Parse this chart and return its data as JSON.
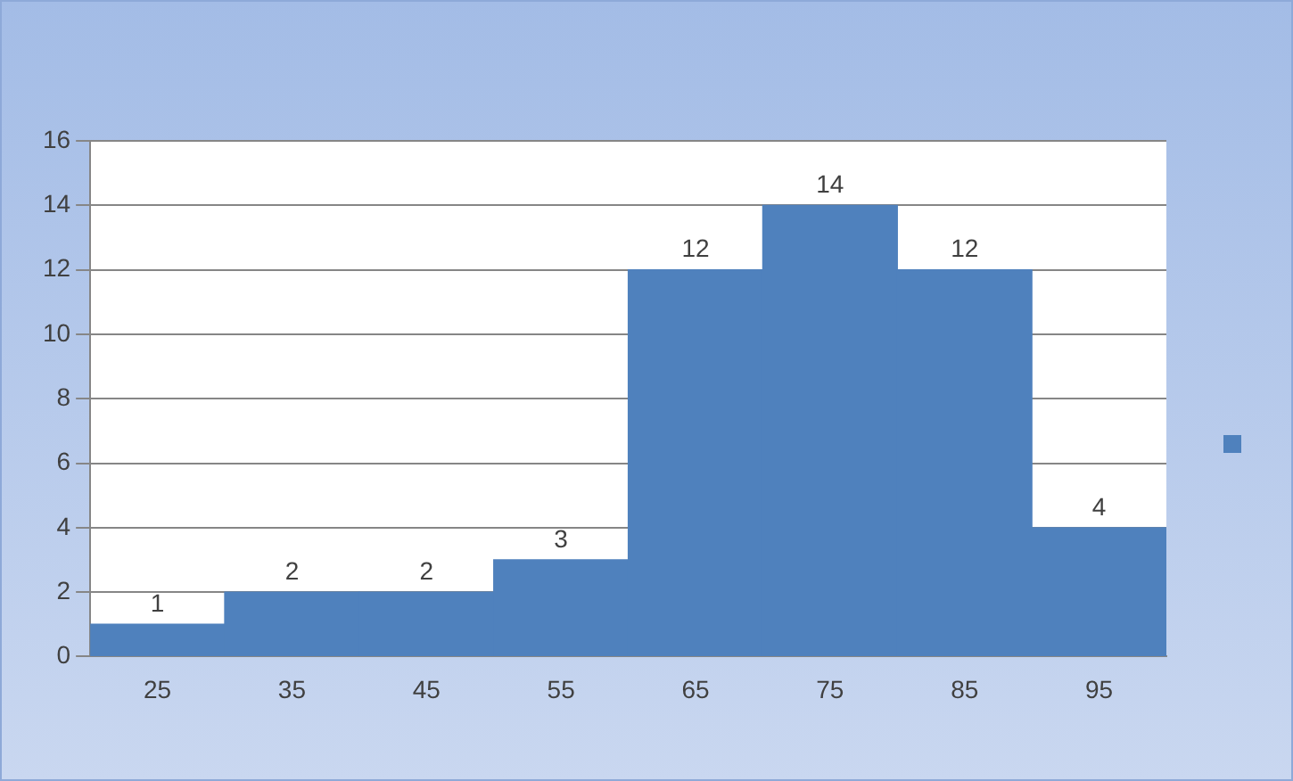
{
  "chart_data": {
    "type": "bar",
    "categories": [
      "25",
      "35",
      "45",
      "55",
      "65",
      "75",
      "85",
      "95"
    ],
    "values": [
      1,
      2,
      2,
      3,
      12,
      14,
      12,
      4
    ],
    "color": "#4f81bd",
    "ylim": [
      0,
      16
    ],
    "yticks": [
      0,
      2,
      4,
      6,
      8,
      10,
      12,
      14,
      16
    ],
    "grid": "y",
    "data_labels": true
  }
}
